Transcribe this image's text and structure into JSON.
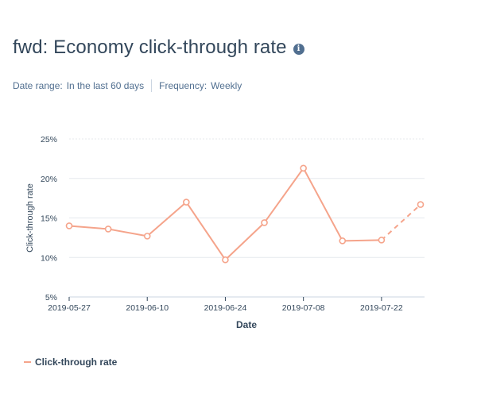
{
  "report": {
    "title": "fwd: Economy click-through rate",
    "info_icon": "info-icon",
    "date_range_label": "Date range:",
    "date_range_value": "In the last 60 days",
    "frequency_label": "Frequency:",
    "frequency_value": "Weekly"
  },
  "chart_data": {
    "type": "line",
    "xlabel": "Date",
    "ylabel": "Click-through rate",
    "ylim": [
      5,
      25
    ],
    "yticks": [
      5,
      10,
      15,
      20,
      25
    ],
    "ytick_labels": [
      "5%",
      "10%",
      "15%",
      "20%",
      "25%"
    ],
    "x": [
      "2019-05-27",
      "2019-06-03",
      "2019-06-10",
      "2019-06-17",
      "2019-06-24",
      "2019-07-01",
      "2019-07-08",
      "2019-07-15",
      "2019-07-22",
      "2019-07-29"
    ],
    "xtick_labels": [
      "2019-05-27",
      "2019-06-10",
      "2019-06-24",
      "2019-07-08",
      "2019-07-22"
    ],
    "series": [
      {
        "name": "Click-through rate",
        "values": [
          14.0,
          13.6,
          12.7,
          17.0,
          9.7,
          14.4,
          21.3,
          12.1,
          12.2,
          16.7
        ],
        "dashed_from_index": 8
      }
    ],
    "color": "#f5a48b",
    "grid": true,
    "legend_position": "bottom-left"
  }
}
